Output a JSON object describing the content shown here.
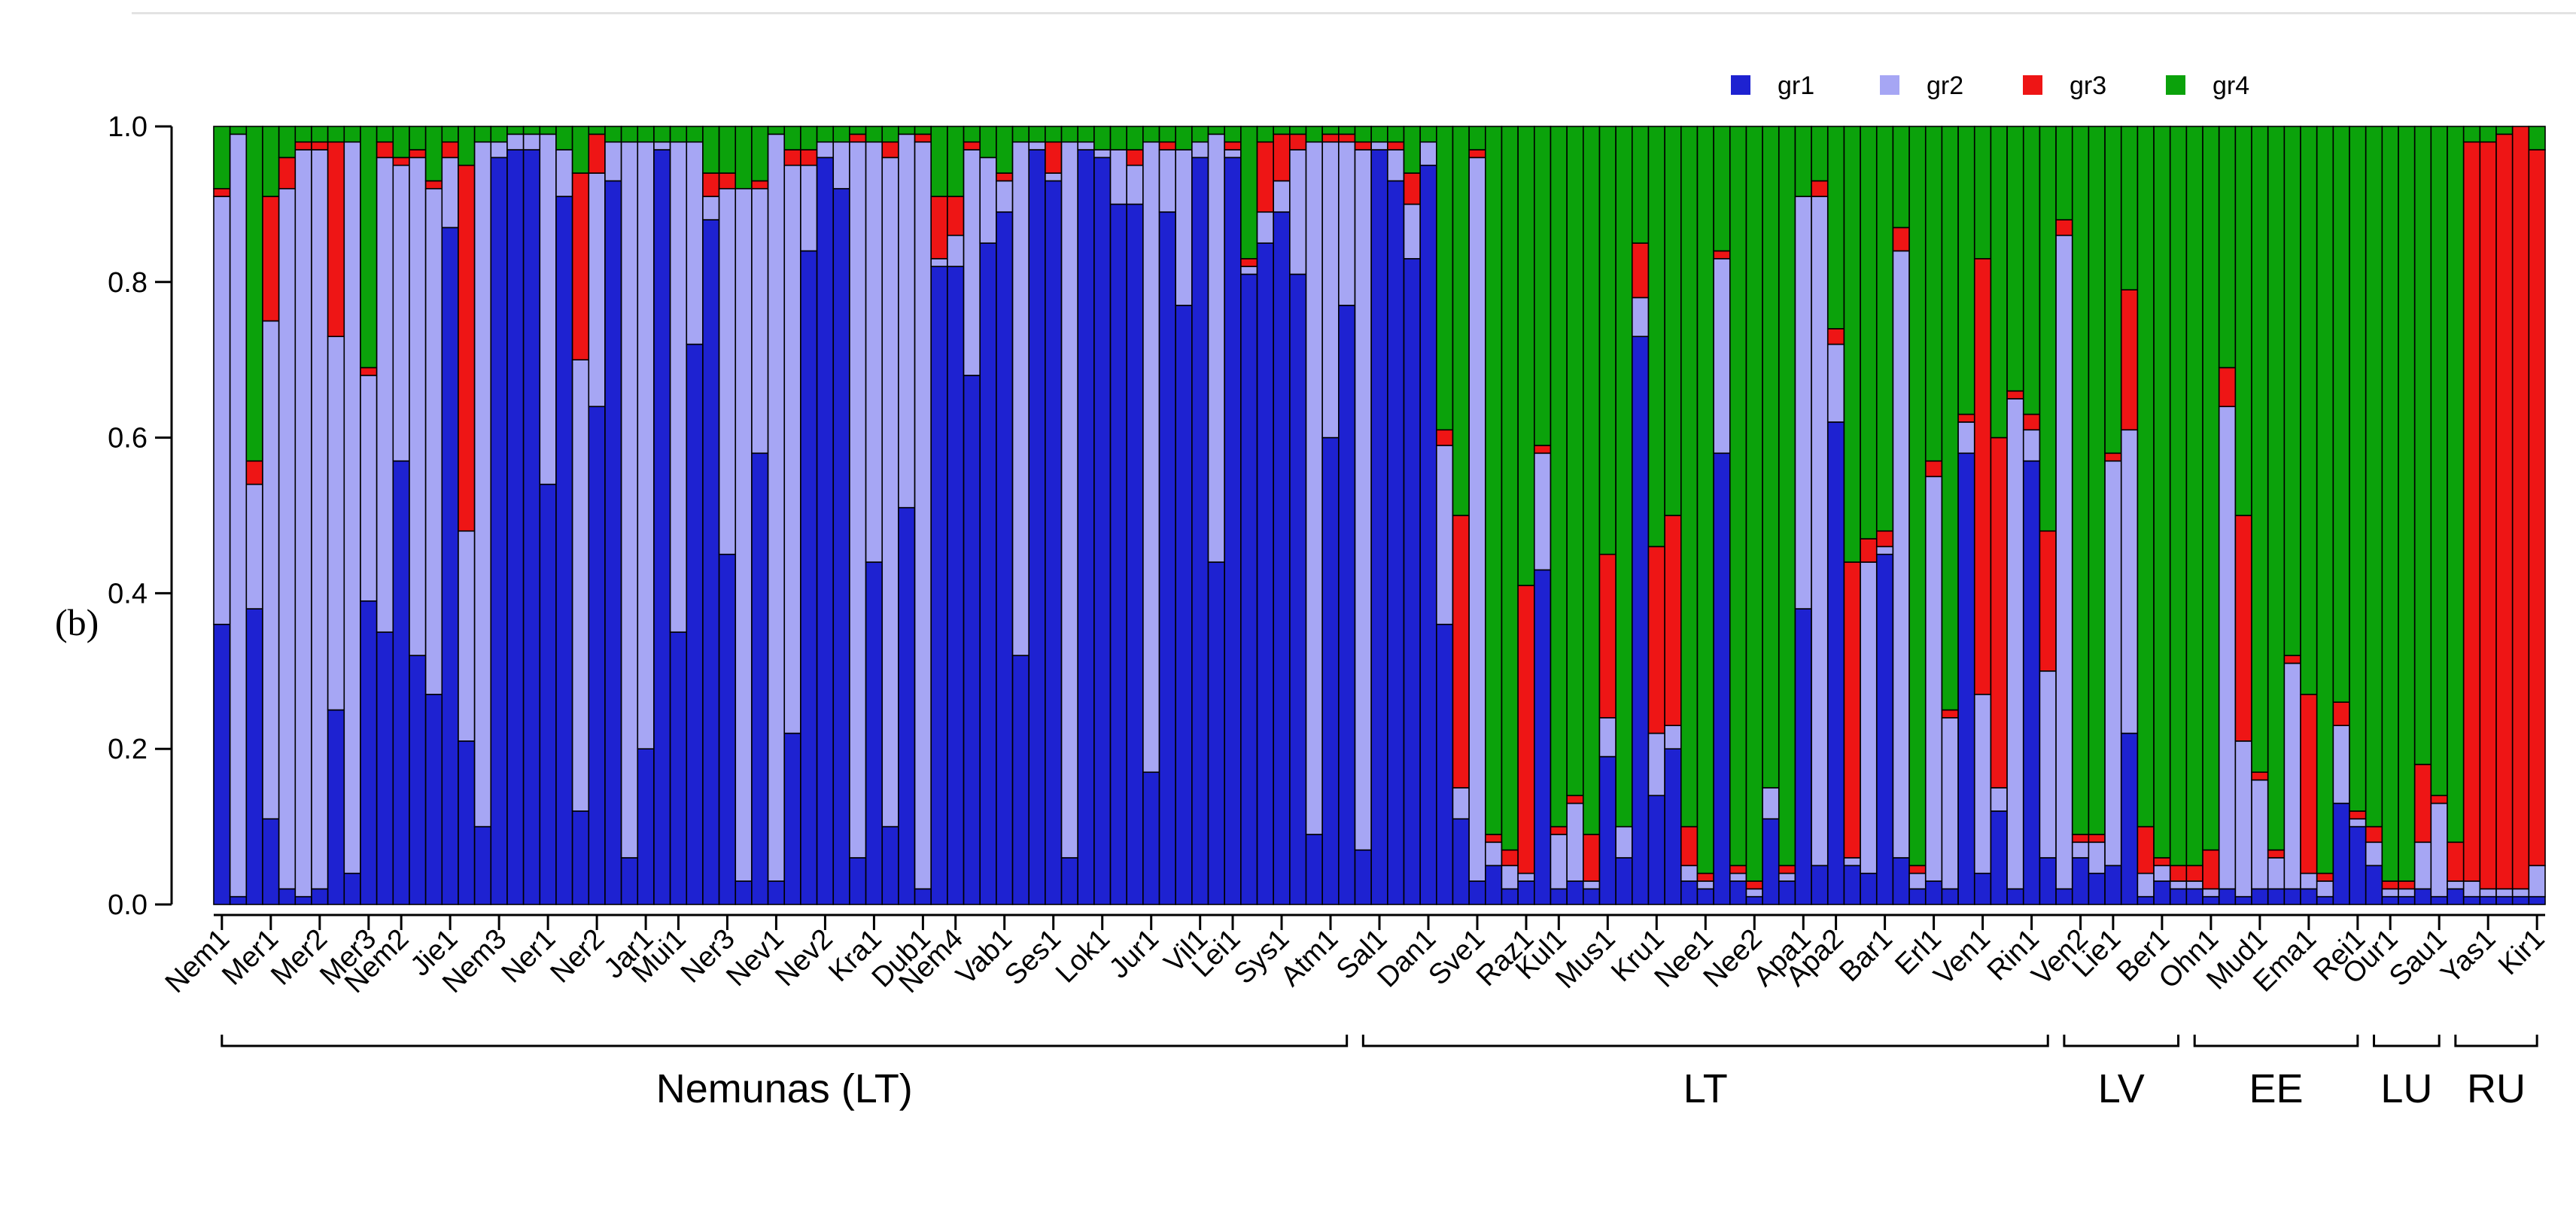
{
  "panel_label": "(b)",
  "chart_data": {
    "type": "bar",
    "stacked": true,
    "ylim": [
      0,
      1
    ],
    "yticks": [
      "0.0",
      "0.2",
      "0.4",
      "0.6",
      "0.8",
      "1.0"
    ],
    "grid": false,
    "legend_position": "top-right",
    "series": [
      {
        "name": "gr1",
        "color": "#1e22d1"
      },
      {
        "name": "gr2",
        "color": "#a6a6f4"
      },
      {
        "name": "gr3",
        "color": "#ee1515"
      },
      {
        "name": "gr4",
        "color": "#0ba20b"
      }
    ],
    "tick_labels": [
      "Nem1",
      "Mer1",
      "Mer2",
      "Mer3",
      "Nem2",
      "Jie1",
      "Nem3",
      "Ner1",
      "Ner2",
      "Jar1",
      "Mui1",
      "Ner3",
      "Nev1",
      "Nev2",
      "Kra1",
      "Dub1",
      "Nem4",
      "Vab1",
      "Ses1",
      "Lok1",
      "Jur1",
      "Vil1",
      "Lei1",
      "Sys1",
      "Atm1",
      "Sal1",
      "Dan1",
      "Sve1",
      "Raz1",
      "Kul1",
      "Mus1",
      "Kru1",
      "Nee1",
      "Nee2",
      "Apa1",
      "Apa2",
      "Bar1",
      "Erl1",
      "Ven1",
      "Rin1",
      "Ven2",
      "Lie1",
      "Ber1",
      "Ohn1",
      "Mud1",
      "Ema1",
      "Rei1",
      "Our1",
      "Sau1",
      "Yas1",
      "Kir1"
    ],
    "groups": [
      {
        "label": "Nemunas (LT)",
        "first_bar": 0,
        "last_bar": 69
      },
      {
        "label": "LT",
        "first_bar": 70,
        "last_bar": 112
      },
      {
        "label": "LV",
        "first_bar": 113,
        "last_bar": 120
      },
      {
        "label": "EE",
        "first_bar": 121,
        "last_bar": 131
      },
      {
        "label": "LU",
        "first_bar": 132,
        "last_bar": 136
      },
      {
        "label": "RU",
        "first_bar": 137,
        "last_bar": 142
      }
    ],
    "bars": [
      [
        0.36,
        0.55,
        0.01,
        0.08
      ],
      [
        0.01,
        0.98,
        0.0,
        0.01
      ],
      [
        0.38,
        0.16,
        0.03,
        0.43
      ],
      [
        0.11,
        0.64,
        0.16,
        0.09
      ],
      [
        0.02,
        0.9,
        0.04,
        0.04
      ],
      [
        0.01,
        0.96,
        0.01,
        0.02
      ],
      [
        0.02,
        0.95,
        0.01,
        0.02
      ],
      [
        0.25,
        0.48,
        0.25,
        0.02
      ],
      [
        0.04,
        0.94,
        0.0,
        0.02
      ],
      [
        0.39,
        0.29,
        0.01,
        0.31
      ],
      [
        0.35,
        0.61,
        0.02,
        0.02
      ],
      [
        0.57,
        0.38,
        0.01,
        0.04
      ],
      [
        0.32,
        0.64,
        0.01,
        0.03
      ],
      [
        0.27,
        0.65,
        0.01,
        0.07
      ],
      [
        0.87,
        0.09,
        0.02,
        0.02
      ],
      [
        0.21,
        0.27,
        0.47,
        0.05
      ],
      [
        0.1,
        0.88,
        0.0,
        0.02
      ],
      [
        0.96,
        0.02,
        0.0,
        0.02
      ],
      [
        0.97,
        0.02,
        0.0,
        0.01
      ],
      [
        0.97,
        0.02,
        0.0,
        0.01
      ],
      [
        0.54,
        0.45,
        0.0,
        0.01
      ],
      [
        0.91,
        0.06,
        0.0,
        0.03
      ],
      [
        0.12,
        0.58,
        0.24,
        0.06
      ],
      [
        0.64,
        0.3,
        0.05,
        0.01
      ],
      [
        0.93,
        0.05,
        0.0,
        0.02
      ],
      [
        0.06,
        0.92,
        0.0,
        0.02
      ],
      [
        0.2,
        0.78,
        0.0,
        0.02
      ],
      [
        0.97,
        0.01,
        0.0,
        0.02
      ],
      [
        0.35,
        0.63,
        0.0,
        0.02
      ],
      [
        0.72,
        0.26,
        0.0,
        0.02
      ],
      [
        0.88,
        0.03,
        0.03,
        0.06
      ],
      [
        0.45,
        0.47,
        0.02,
        0.06
      ],
      [
        0.03,
        0.89,
        0.0,
        0.08
      ],
      [
        0.58,
        0.34,
        0.01,
        0.07
      ],
      [
        0.03,
        0.96,
        0.0,
        0.01
      ],
      [
        0.22,
        0.73,
        0.02,
        0.03
      ],
      [
        0.84,
        0.11,
        0.02,
        0.03
      ],
      [
        0.96,
        0.02,
        0.0,
        0.02
      ],
      [
        0.92,
        0.06,
        0.0,
        0.02
      ],
      [
        0.06,
        0.92,
        0.01,
        0.01
      ],
      [
        0.44,
        0.54,
        0.0,
        0.02
      ],
      [
        0.1,
        0.86,
        0.02,
        0.02
      ],
      [
        0.51,
        0.48,
        0.0,
        0.01
      ],
      [
        0.02,
        0.96,
        0.01,
        0.01
      ],
      [
        0.82,
        0.01,
        0.08,
        0.09
      ],
      [
        0.82,
        0.04,
        0.05,
        0.09
      ],
      [
        0.68,
        0.29,
        0.01,
        0.02
      ],
      [
        0.85,
        0.11,
        0.0,
        0.04
      ],
      [
        0.89,
        0.04,
        0.01,
        0.06
      ],
      [
        0.32,
        0.66,
        0.0,
        0.02
      ],
      [
        0.97,
        0.01,
        0.0,
        0.02
      ],
      [
        0.93,
        0.01,
        0.04,
        0.02
      ],
      [
        0.06,
        0.92,
        0.0,
        0.02
      ],
      [
        0.97,
        0.01,
        0.0,
        0.02
      ],
      [
        0.96,
        0.01,
        0.0,
        0.03
      ],
      [
        0.9,
        0.07,
        0.0,
        0.03
      ],
      [
        0.9,
        0.05,
        0.02,
        0.03
      ],
      [
        0.17,
        0.81,
        0.0,
        0.02
      ],
      [
        0.89,
        0.08,
        0.01,
        0.02
      ],
      [
        0.77,
        0.2,
        0.0,
        0.03
      ],
      [
        0.96,
        0.02,
        0.0,
        0.02
      ],
      [
        0.44,
        0.55,
        0.0,
        0.01
      ],
      [
        0.96,
        0.01,
        0.01,
        0.02
      ],
      [
        0.81,
        0.01,
        0.01,
        0.17
      ],
      [
        0.85,
        0.04,
        0.09,
        0.02
      ],
      [
        0.89,
        0.04,
        0.06,
        0.01
      ],
      [
        0.81,
        0.16,
        0.02,
        0.01
      ],
      [
        0.09,
        0.89,
        0.0,
        0.02
      ],
      [
        0.6,
        0.38,
        0.01,
        0.01
      ],
      [
        0.77,
        0.21,
        0.01,
        0.01
      ],
      [
        0.07,
        0.9,
        0.01,
        0.02
      ],
      [
        0.97,
        0.01,
        0.0,
        0.02
      ],
      [
        0.93,
        0.04,
        0.01,
        0.02
      ],
      [
        0.83,
        0.07,
        0.04,
        0.06
      ],
      [
        0.95,
        0.03,
        0.0,
        0.02
      ],
      [
        0.36,
        0.23,
        0.02,
        0.39
      ],
      [
        0.11,
        0.04,
        0.35,
        0.5
      ],
      [
        0.03,
        0.93,
        0.01,
        0.03
      ],
      [
        0.05,
        0.03,
        0.01,
        0.91
      ],
      [
        0.02,
        0.03,
        0.02,
        0.93
      ],
      [
        0.03,
        0.01,
        0.37,
        0.59
      ],
      [
        0.43,
        0.15,
        0.01,
        0.41
      ],
      [
        0.02,
        0.07,
        0.01,
        0.9
      ],
      [
        0.03,
        0.1,
        0.01,
        0.86
      ],
      [
        0.02,
        0.01,
        0.06,
        0.91
      ],
      [
        0.19,
        0.05,
        0.21,
        0.55
      ],
      [
        0.06,
        0.04,
        0.0,
        0.9
      ],
      [
        0.73,
        0.05,
        0.07,
        0.15
      ],
      [
        0.14,
        0.08,
        0.24,
        0.54
      ],
      [
        0.2,
        0.03,
        0.27,
        0.5
      ],
      [
        0.03,
        0.02,
        0.05,
        0.9
      ],
      [
        0.02,
        0.01,
        0.01,
        0.96
      ],
      [
        0.58,
        0.25,
        0.01,
        0.16
      ],
      [
        0.03,
        0.01,
        0.01,
        0.95
      ],
      [
        0.01,
        0.01,
        0.01,
        0.97
      ],
      [
        0.11,
        0.04,
        0.0,
        0.85
      ],
      [
        0.03,
        0.01,
        0.01,
        0.95
      ],
      [
        0.38,
        0.53,
        0.0,
        0.09
      ],
      [
        0.05,
        0.86,
        0.02,
        0.07
      ],
      [
        0.62,
        0.1,
        0.02,
        0.26
      ],
      [
        0.05,
        0.01,
        0.38,
        0.56
      ],
      [
        0.04,
        0.4,
        0.03,
        0.53
      ],
      [
        0.45,
        0.01,
        0.02,
        0.52
      ],
      [
        0.06,
        0.78,
        0.03,
        0.13
      ],
      [
        0.02,
        0.02,
        0.01,
        0.95
      ],
      [
        0.03,
        0.52,
        0.02,
        0.43
      ],
      [
        0.02,
        0.22,
        0.01,
        0.75
      ],
      [
        0.58,
        0.04,
        0.01,
        0.37
      ],
      [
        0.04,
        0.23,
        0.56,
        0.17
      ],
      [
        0.12,
        0.03,
        0.45,
        0.4
      ],
      [
        0.02,
        0.63,
        0.01,
        0.34
      ],
      [
        0.57,
        0.04,
        0.02,
        0.37
      ],
      [
        0.06,
        0.24,
        0.18,
        0.52
      ],
      [
        0.02,
        0.84,
        0.02,
        0.12
      ],
      [
        0.06,
        0.02,
        0.01,
        0.91
      ],
      [
        0.04,
        0.04,
        0.01,
        0.91
      ],
      [
        0.05,
        0.52,
        0.01,
        0.42
      ],
      [
        0.22,
        0.39,
        0.18,
        0.21
      ],
      [
        0.01,
        0.03,
        0.06,
        0.9
      ],
      [
        0.03,
        0.02,
        0.01,
        0.94
      ],
      [
        0.02,
        0.01,
        0.02,
        0.95
      ],
      [
        0.02,
        0.01,
        0.02,
        0.95
      ],
      [
        0.01,
        0.01,
        0.05,
        0.93
      ],
      [
        0.02,
        0.62,
        0.05,
        0.31
      ],
      [
        0.01,
        0.2,
        0.29,
        0.5
      ],
      [
        0.02,
        0.14,
        0.01,
        0.83
      ],
      [
        0.02,
        0.04,
        0.01,
        0.93
      ],
      [
        0.02,
        0.29,
        0.01,
        0.68
      ],
      [
        0.02,
        0.02,
        0.23,
        0.73
      ],
      [
        0.01,
        0.02,
        0.01,
        0.96
      ],
      [
        0.13,
        0.1,
        0.03,
        0.74
      ],
      [
        0.1,
        0.01,
        0.01,
        0.88
      ],
      [
        0.05,
        0.03,
        0.02,
        0.9
      ],
      [
        0.01,
        0.01,
        0.01,
        0.97
      ],
      [
        0.01,
        0.01,
        0.01,
        0.97
      ],
      [
        0.02,
        0.06,
        0.1,
        0.82
      ],
      [
        0.01,
        0.12,
        0.01,
        0.86
      ],
      [
        0.02,
        0.01,
        0.05,
        0.92
      ],
      [
        0.01,
        0.02,
        0.95,
        0.02
      ],
      [
        0.01,
        0.01,
        0.96,
        0.02
      ],
      [
        0.01,
        0.01,
        0.97,
        0.01
      ],
      [
        0.01,
        0.01,
        0.98,
        0.0
      ],
      [
        0.01,
        0.04,
        0.92,
        0.03
      ]
    ]
  }
}
